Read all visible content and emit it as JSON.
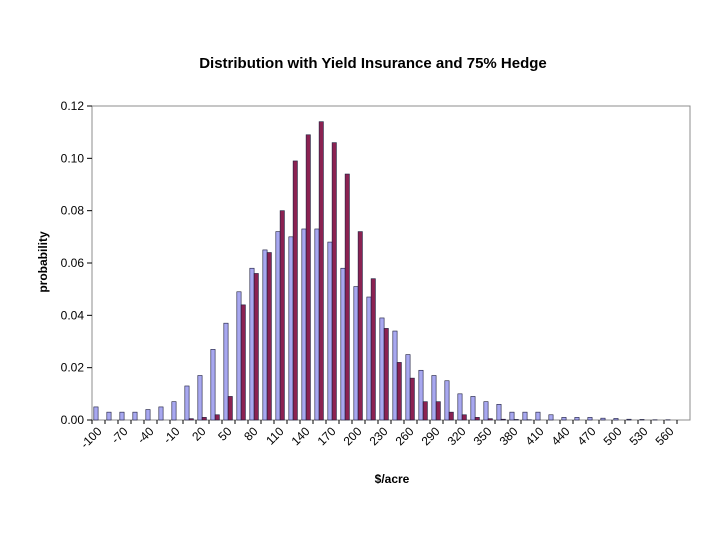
{
  "chart_data": {
    "type": "bar",
    "title": "Distribution with Yield Insurance and 75% Hedge",
    "xlabel": "$/acre",
    "ylabel": "probability",
    "ylim": [
      0,
      0.12
    ],
    "yticks": [
      "0.00",
      "0.02",
      "0.04",
      "0.06",
      "0.08",
      "0.10",
      "0.12"
    ],
    "grid": false,
    "legend": "none",
    "categories": [
      -100,
      -85,
      -70,
      -55,
      -40,
      -25,
      -10,
      5,
      20,
      35,
      50,
      65,
      80,
      95,
      110,
      125,
      140,
      155,
      170,
      185,
      200,
      215,
      230,
      245,
      260,
      275,
      290,
      305,
      320,
      335,
      350,
      365,
      380,
      395,
      410,
      425,
      440,
      455,
      470,
      485,
      500,
      515,
      530,
      545,
      560,
      575
    ],
    "category_labels": [
      "-100",
      "-70",
      "-40",
      "-10",
      "20",
      "50",
      "80",
      "110",
      "140",
      "170",
      "200",
      "230",
      "260",
      "290",
      "320",
      "350",
      "380",
      "410",
      "440",
      "470",
      "500",
      "530",
      "560"
    ],
    "series": [
      {
        "color": "#a8a8f0",
        "values": [
          0.005,
          0.003,
          0.003,
          0.003,
          0.004,
          0.005,
          0.007,
          0.013,
          0.017,
          0.027,
          0.037,
          0.049,
          0.058,
          0.065,
          0.072,
          0.07,
          0.073,
          0.073,
          0.068,
          0.058,
          0.051,
          0.047,
          0.039,
          0.034,
          0.025,
          0.019,
          0.017,
          0.015,
          0.01,
          0.009,
          0.007,
          0.006,
          0.003,
          0.003,
          0.003,
          0.002,
          0.001,
          0.001,
          0.001,
          0.0007,
          0.0006,
          0.0003,
          0.0002,
          0.0001,
          0.0001,
          0.0
        ]
      },
      {
        "color": "#8b2252",
        "values": [
          0,
          0,
          0,
          0,
          0,
          0,
          0,
          0.0005,
          0.001,
          0.002,
          0.009,
          0.044,
          0.056,
          0.064,
          0.08,
          0.099,
          0.109,
          0.114,
          0.106,
          0.094,
          0.072,
          0.054,
          0.035,
          0.022,
          0.016,
          0.007,
          0.007,
          0.003,
          0.002,
          0.001,
          0.0005,
          0.0003,
          0.0002,
          0.0001,
          0,
          0,
          0,
          0,
          0,
          0,
          0,
          0,
          0,
          0,
          0,
          0
        ]
      }
    ]
  }
}
